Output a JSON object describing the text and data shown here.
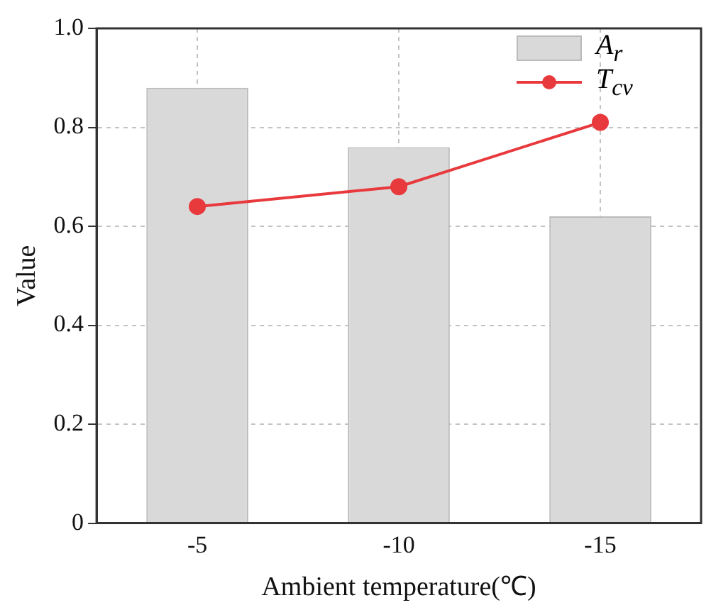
{
  "chart_data": {
    "type": "bar",
    "xlabel": "Ambient temperature(℃)",
    "ylabel": "Value",
    "categories": [
      "-5",
      "-10",
      "-15"
    ],
    "series": [
      {
        "name": "A$_{r}$",
        "color": "#d9d9d9",
        "values": [
          0.88,
          0.76,
          0.62
        ]
      },
      {
        "name": "T$_{cv}$",
        "type": "line",
        "color": "#e8393c",
        "values": [
          0.64,
          0.68,
          0.81
        ]
      }
    ],
    "ylim": [
      0,
      1.0
    ],
    "yticks": [
      0,
      {
        "value": 0.2,
        "label": "0.2"
      },
      {
        "value": 0.4,
        "label": "0.4"
      },
      {
        "value": 0.6,
        "label": "0.6"
      },
      {
        "value": 0.8,
        "label": "0.8"
      },
      {
        "value": 1.0,
        "label": "1.0"
      }
    ],
    "grid": true,
    "legend": "top right",
    "marker": "circle",
    "line_style": "solid"
  }
}
